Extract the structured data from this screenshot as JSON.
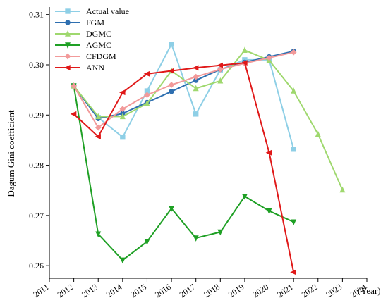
{
  "chart_data": {
    "type": "line",
    "xlabel": "(Year)",
    "ylabel": "Dagum Gini coefficient",
    "x_ticks": [
      2011,
      2012,
      2013,
      2014,
      2015,
      2016,
      2017,
      2018,
      2019,
      2020,
      2021,
      2022,
      2023,
      2024
    ],
    "y_ticks": [
      0.26,
      0.27,
      0.28,
      0.29,
      0.3,
      0.31
    ],
    "xlim": [
      2011,
      2024
    ],
    "ylim": [
      0.2575,
      0.3115
    ],
    "grid": false,
    "legend_position": "top-left",
    "series": [
      {
        "name": "Actual value",
        "color": "#8ecfe6",
        "marker": "square",
        "x": [
          2012,
          2013,
          2014,
          2015,
          2016,
          2017,
          2018,
          2019,
          2020,
          2021
        ],
        "y": [
          0.2958,
          0.2895,
          0.2856,
          0.2948,
          0.3041,
          0.2902,
          0.299,
          0.301,
          0.301,
          0.2832
        ]
      },
      {
        "name": "FGM",
        "color": "#2e6fb0",
        "marker": "circle",
        "x": [
          2012,
          2013,
          2014,
          2015,
          2016,
          2017,
          2018,
          2019,
          2020,
          2021
        ],
        "y": [
          0.2958,
          0.2893,
          0.2903,
          0.2925,
          0.2947,
          0.2969,
          0.2991,
          0.3005,
          0.3016,
          0.3027
        ]
      },
      {
        "name": "DGMC",
        "color": "#9fd86e",
        "marker": "triangle-up",
        "x": [
          2012,
          2013,
          2014,
          2015,
          2016,
          2017,
          2018,
          2019,
          2020,
          2021,
          2022,
          2023
        ],
        "y": [
          0.2958,
          0.2897,
          0.2897,
          0.2923,
          0.2988,
          0.2953,
          0.2968,
          0.3029,
          0.3009,
          0.2948,
          0.2862,
          0.2751
        ]
      },
      {
        "name": "AGMC",
        "color": "#1fa025",
        "marker": "triangle-down",
        "x": [
          2012,
          2013,
          2014,
          2015,
          2016,
          2017,
          2018,
          2019,
          2020,
          2021
        ],
        "y": [
          0.2958,
          0.2663,
          0.2611,
          0.2648,
          0.2714,
          0.2655,
          0.2667,
          0.2738,
          0.2709,
          0.2687
        ]
      },
      {
        "name": "CFDGM",
        "color": "#f29a9a",
        "marker": "diamond",
        "x": [
          2012,
          2013,
          2014,
          2015,
          2016,
          2017,
          2018,
          2019,
          2020,
          2021
        ],
        "y": [
          0.2958,
          0.2875,
          0.2912,
          0.294,
          0.296,
          0.2976,
          0.2991,
          0.3003,
          0.3014,
          0.3025
        ]
      },
      {
        "name": "ANN",
        "color": "#e01919",
        "marker": "triangle-left",
        "x": [
          2012,
          2013,
          2014,
          2015,
          2016,
          2017,
          2018,
          2019,
          2020,
          2021
        ],
        "y": [
          0.2902,
          0.2857,
          0.2945,
          0.2982,
          0.2988,
          0.2994,
          0.2999,
          0.3004,
          0.2825,
          0.2587
        ]
      }
    ]
  }
}
